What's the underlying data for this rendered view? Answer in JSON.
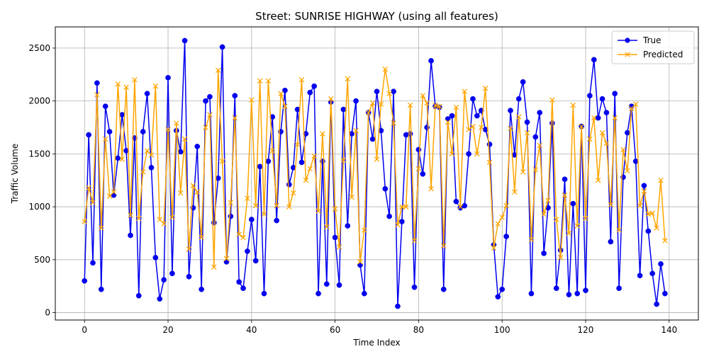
{
  "chart_data": {
    "type": "line",
    "title": "Street: SUNRISE HIGHWAY (using all features)",
    "xlabel": "Time Index",
    "ylabel": "Traffic Volume",
    "xlim": [
      -7,
      147
    ],
    "ylim": [
      -70,
      2700
    ],
    "x_ticks": [
      0,
      20,
      40,
      60,
      80,
      100,
      120,
      140
    ],
    "y_ticks": [
      0,
      500,
      1000,
      1500,
      2000,
      2500
    ],
    "grid": true,
    "legend_position": "upper right",
    "colors": {
      "true": "#0000ee",
      "predicted": "#ffa500"
    },
    "series": [
      {
        "name": "True",
        "marker": "circle",
        "values": [
          300,
          1680,
          470,
          2170,
          220,
          1950,
          1710,
          1110,
          1460,
          1870,
          1530,
          730,
          1650,
          160,
          1710,
          2070,
          1370,
          520,
          130,
          310,
          2220,
          370,
          1720,
          1520,
          2570,
          340,
          990,
          1570,
          220,
          2000,
          2040,
          850,
          1270,
          2510,
          480,
          910,
          2050,
          290,
          230,
          580,
          880,
          490,
          1380,
          180,
          1430,
          1850,
          870,
          1710,
          2100,
          1210,
          1370,
          1920,
          1420,
          1690,
          2080,
          2140,
          180,
          1430,
          270,
          1990,
          710,
          260,
          1920,
          820,
          1690,
          2000,
          450,
          180,
          1890,
          1640,
          2090,
          1720,
          1170,
          910,
          2090,
          60,
          860,
          1680,
          1690,
          240,
          1540,
          1310,
          1750,
          2380,
          1950,
          1940,
          220,
          1830,
          1860,
          1050,
          990,
          1010,
          1500,
          2020,
          1860,
          1910,
          1730,
          1590,
          640,
          150,
          220,
          720,
          1910,
          1490,
          2020,
          2180,
          1800,
          180,
          1660,
          1890,
          560,
          990,
          1790,
          230,
          590,
          1260,
          170,
          1030,
          180,
          1760,
          210,
          2050,
          2390,
          1840,
          2020,
          1890,
          670,
          2070,
          230,
          1280,
          1700,
          1950,
          1430,
          350,
          1200,
          770,
          370,
          80,
          460,
          180
        ]
      },
      {
        "name": "Predicted",
        "marker": "x",
        "values": [
          860,
          1180,
          1040,
          2060,
          800,
          1640,
          1100,
          1140,
          2160,
          1450,
          2130,
          920,
          2200,
          890,
          1330,
          1530,
          1490,
          2140,
          880,
          840,
          1730,
          900,
          1790,
          1130,
          1640,
          600,
          1200,
          1140,
          710,
          1750,
          1870,
          430,
          2290,
          1430,
          510,
          1040,
          1840,
          740,
          710,
          1080,
          2010,
          1010,
          2190,
          930,
          2190,
          1530,
          1010,
          2070,
          1950,
          1000,
          1130,
          1590,
          2200,
          1250,
          1360,
          1480,
          960,
          1690,
          810,
          2020,
          980,
          620,
          1440,
          2210,
          1090,
          1720,
          480,
          780,
          1890,
          1980,
          1450,
          1970,
          2300,
          2070,
          1790,
          830,
          1000,
          1000,
          1960,
          680,
          1360,
          2050,
          1980,
          1170,
          1960,
          1950,
          630,
          1800,
          1500,
          1940,
          1000,
          2090,
          1730,
          1760,
          1500,
          1750,
          2120,
          1420,
          610,
          840,
          900,
          1010,
          1740,
          1140,
          1850,
          1330,
          1700,
          690,
          1350,
          1580,
          930,
          1060,
          2010,
          880,
          520,
          1110,
          750,
          1960,
          820,
          1760,
          890,
          1640,
          1840,
          1250,
          1700,
          1600,
          1020,
          1840,
          780,
          1540,
          1340,
          1930,
          1970,
          1010,
          1150,
          930,
          940,
          800,
          1250,
          680
        ]
      }
    ]
  }
}
